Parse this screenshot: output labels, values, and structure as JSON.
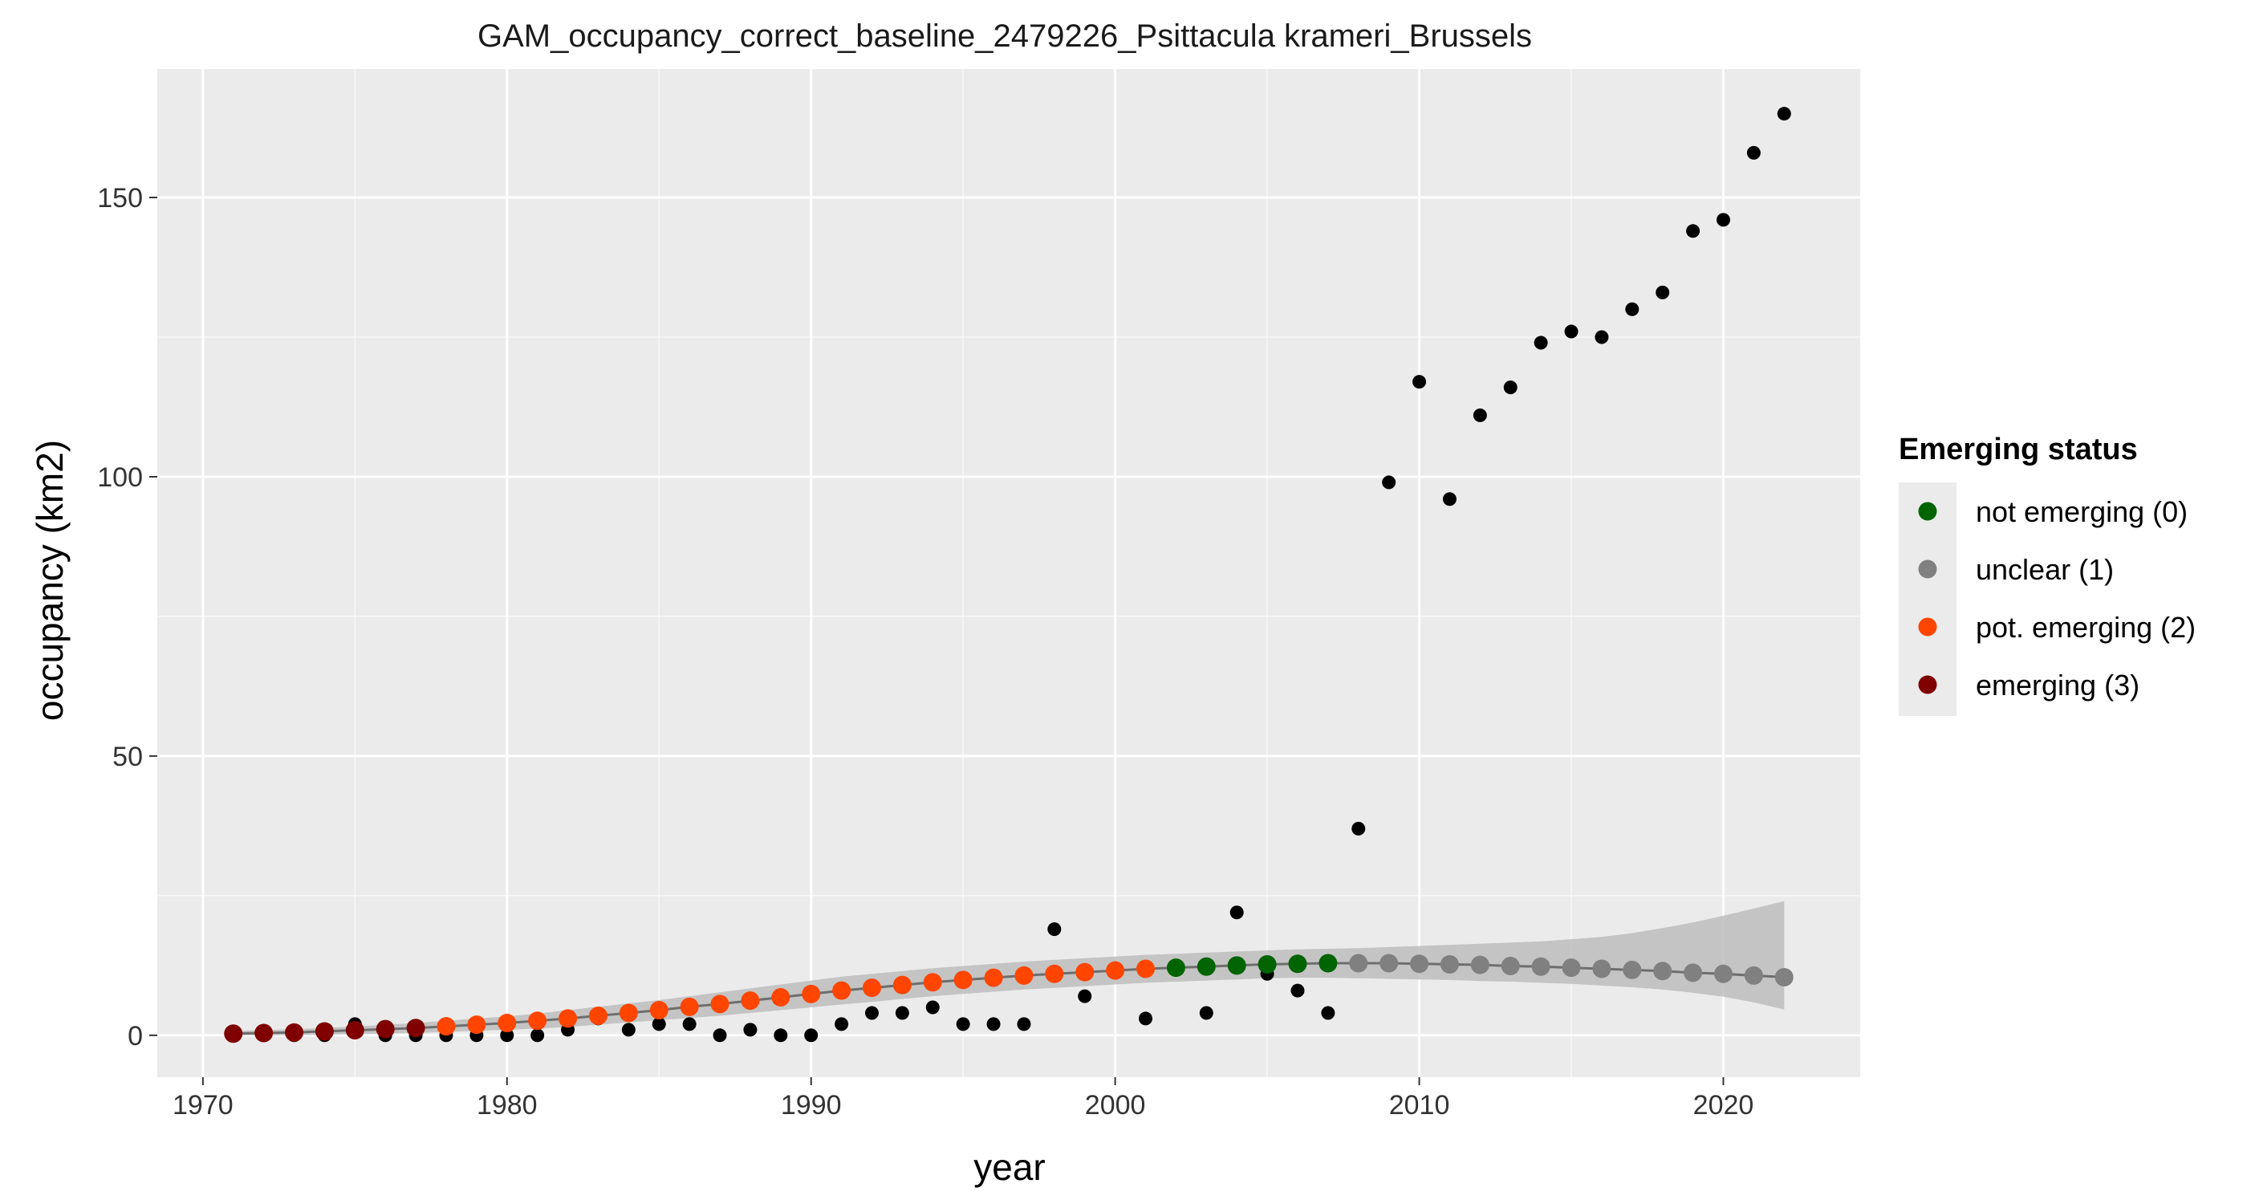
{
  "chart_data": {
    "type": "scatter",
    "title": "GAM_occupancy_correct_baseline_2479226_Psittacula krameri_Brussels",
    "xlabel": "year",
    "ylabel": "occupancy (km2)",
    "xlim": [
      1968.5,
      2024.5
    ],
    "ylim": [
      -7.5,
      173
    ],
    "x_ticks": [
      1970,
      1980,
      1990,
      2000,
      2010,
      2020
    ],
    "y_ticks": [
      0,
      50,
      100,
      150
    ],
    "grid": true,
    "legend": {
      "title": "Emerging status",
      "position": "right",
      "entries": [
        {
          "label": "not emerging (0)",
          "color": "#006400"
        },
        {
          "label": "unclear (1)",
          "color": "#808080"
        },
        {
          "label": "pot. emerging (2)",
          "color": "#ff4500"
        },
        {
          "label": "emerging (3)",
          "color": "#800000"
        }
      ]
    },
    "observed": {
      "color": "#000000",
      "x": [
        1971,
        1972,
        1973,
        1974,
        1975,
        1976,
        1977,
        1978,
        1979,
        1980,
        1981,
        1982,
        1983,
        1984,
        1985,
        1986,
        1987,
        1988,
        1989,
        1990,
        1991,
        1992,
        1993,
        1994,
        1995,
        1996,
        1997,
        1998,
        1999,
        2000,
        2001,
        2002,
        2003,
        2004,
        2005,
        2006,
        2007,
        2008,
        2009,
        2010,
        2011,
        2012,
        2013,
        2014,
        2015,
        2016,
        2017,
        2018,
        2019,
        2020,
        2021,
        2022
      ],
      "y": [
        0,
        0,
        0,
        0,
        2,
        0,
        0,
        0,
        0,
        0,
        0,
        1,
        3,
        1,
        2,
        2,
        0,
        1,
        0,
        0,
        2,
        4,
        4,
        5,
        2,
        2,
        2,
        19,
        7,
        12,
        3,
        12,
        4,
        22,
        11,
        8,
        4,
        37,
        99,
        117,
        96,
        111,
        116,
        124,
        126,
        125,
        130,
        133,
        144,
        146,
        158,
        165
      ]
    },
    "fit": {
      "x": [
        1971,
        1972,
        1973,
        1974,
        1975,
        1976,
        1977,
        1978,
        1979,
        1980,
        1981,
        1982,
        1983,
        1984,
        1985,
        1986,
        1987,
        1988,
        1989,
        1990,
        1991,
        1992,
        1993,
        1994,
        1995,
        1996,
        1997,
        1998,
        1999,
        2000,
        2001,
        2002,
        2003,
        2004,
        2005,
        2006,
        2007,
        2008,
        2009,
        2010,
        2011,
        2012,
        2013,
        2014,
        2015,
        2016,
        2017,
        2018,
        2019,
        2020,
        2021,
        2022
      ],
      "y": [
        0.3,
        0.4,
        0.5,
        0.7,
        0.9,
        1.1,
        1.3,
        1.6,
        1.9,
        2.2,
        2.6,
        3.0,
        3.5,
        4.0,
        4.5,
        5.1,
        5.6,
        6.2,
        6.8,
        7.4,
        8.0,
        8.5,
        9.0,
        9.5,
        9.9,
        10.3,
        10.7,
        11.0,
        11.3,
        11.6,
        11.9,
        12.1,
        12.3,
        12.5,
        12.7,
        12.8,
        12.9,
        12.9,
        12.9,
        12.8,
        12.7,
        12.6,
        12.4,
        12.3,
        12.1,
        11.9,
        11.7,
        11.5,
        11.2,
        11.0,
        10.7,
        10.4
      ],
      "lower": [
        0.0,
        0.0,
        0.0,
        0.1,
        0.2,
        0.3,
        0.4,
        0.6,
        0.8,
        1.0,
        1.2,
        1.5,
        1.9,
        2.3,
        2.7,
        3.1,
        3.5,
        4.0,
        4.5,
        5.0,
        5.5,
        6.0,
        6.5,
        7.0,
        7.4,
        7.8,
        8.2,
        8.5,
        8.8,
        9.1,
        9.4,
        9.6,
        9.8,
        10.0,
        10.2,
        10.3,
        10.3,
        10.2,
        10.1,
        10.0,
        9.9,
        9.7,
        9.6,
        9.4,
        9.2,
        8.9,
        8.6,
        8.2,
        7.6,
        6.9,
        5.9,
        4.6
      ],
      "upper": [
        0.8,
        0.9,
        1.1,
        1.3,
        1.6,
        1.9,
        2.2,
        2.6,
        3.0,
        3.4,
        3.9,
        4.5,
        5.1,
        5.7,
        6.3,
        7.0,
        7.7,
        8.4,
        9.1,
        9.8,
        10.5,
        11.0,
        11.5,
        12.0,
        12.4,
        12.8,
        13.2,
        13.5,
        13.8,
        14.1,
        14.4,
        14.6,
        14.8,
        15.0,
        15.2,
        15.4,
        15.5,
        15.6,
        15.8,
        16.0,
        16.2,
        16.4,
        16.6,
        16.8,
        17.2,
        17.6,
        18.3,
        19.2,
        20.2,
        21.4,
        22.7,
        24.0
      ],
      "band_color": "#bdbdbd",
      "line_color": "#6e6e6e",
      "status": [
        3,
        3,
        3,
        3,
        3,
        3,
        3,
        2,
        2,
        2,
        2,
        2,
        2,
        2,
        2,
        2,
        2,
        2,
        2,
        2,
        2,
        2,
        2,
        2,
        2,
        2,
        2,
        2,
        2,
        2,
        2,
        0,
        0,
        0,
        0,
        0,
        0,
        1,
        1,
        1,
        1,
        1,
        1,
        1,
        1,
        1,
        1,
        1,
        1,
        1,
        1,
        1
      ]
    }
  }
}
